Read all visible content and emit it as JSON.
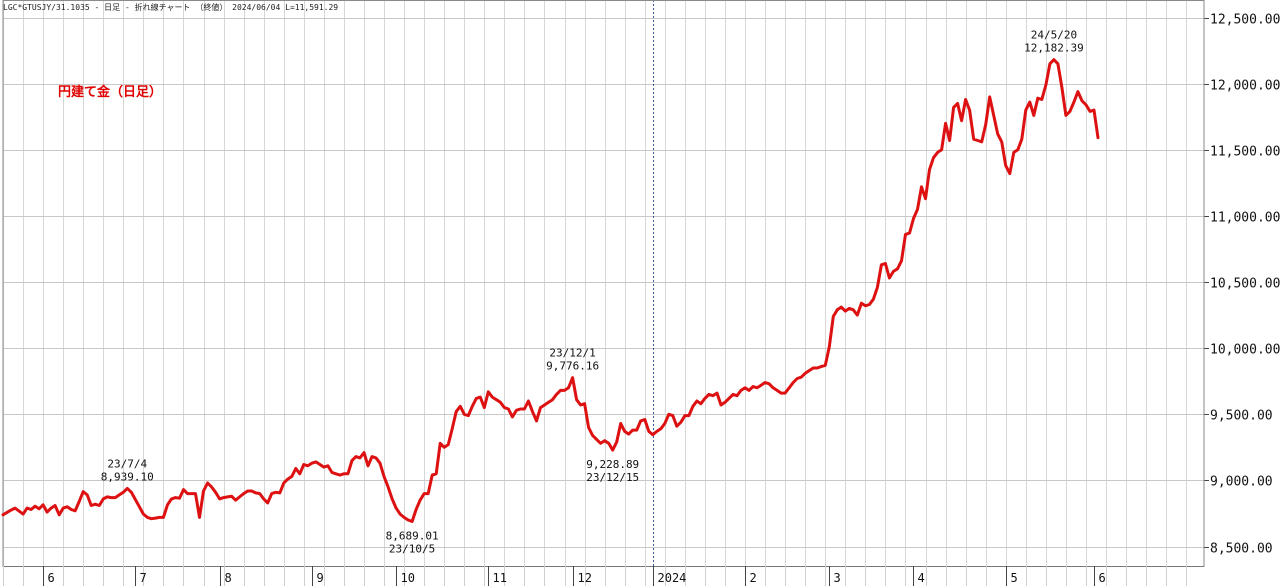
{
  "header": {
    "text": "LGC*GTUSJY/31.1035 - 日足 - 折れ線チャート （終値）  2024/06/04 L=11,591.29"
  },
  "chart_data": {
    "type": "line",
    "title": "円建て金（日足）",
    "xlabel": "",
    "ylabel": "",
    "ylim": [
      8450,
      12560
    ],
    "yticks": [
      8500,
      9000,
      9500,
      10000,
      10500,
      11000,
      11500,
      12000,
      12500
    ],
    "ytick_labels": [
      "8,500.00",
      "9,000.00",
      "9,500.00",
      "10,000.00",
      "10,500.00",
      "11,000.00",
      "11,500.00",
      "12,000.00",
      "12,500.00"
    ],
    "x_range": [
      0,
      273
    ],
    "x_month_ticks": [
      {
        "label": "6",
        "x": 10
      },
      {
        "label": "7",
        "x": 33
      },
      {
        "label": "8",
        "x": 54
      },
      {
        "label": "9",
        "x": 77
      },
      {
        "label": "10",
        "x": 98
      },
      {
        "label": "11",
        "x": 121
      },
      {
        "label": "12",
        "x": 142
      },
      {
        "label": "2024",
        "x": 162
      },
      {
        "label": "2",
        "x": 185
      },
      {
        "label": "3",
        "x": 206
      },
      {
        "label": "4",
        "x": 227
      },
      {
        "label": "5",
        "x": 250
      },
      {
        "label": "6",
        "x": 272
      }
    ],
    "year_divider_x": 162,
    "grid": true,
    "legend": "none",
    "series": [
      {
        "color": "#dd1111",
        "points": [
          [
            0,
            8740
          ],
          [
            2,
            8775
          ],
          [
            3,
            8790
          ],
          [
            5,
            8745
          ],
          [
            6,
            8790
          ],
          [
            7,
            8780
          ],
          [
            8,
            8805
          ],
          [
            9,
            8785
          ],
          [
            10,
            8815
          ],
          [
            11,
            8760
          ],
          [
            12,
            8790
          ],
          [
            13,
            8810
          ],
          [
            14,
            8740
          ],
          [
            15,
            8790
          ],
          [
            16,
            8800
          ],
          [
            17,
            8780
          ],
          [
            18,
            8770
          ],
          [
            19,
            8840
          ],
          [
            20,
            8915
          ],
          [
            21,
            8890
          ],
          [
            22,
            8810
          ],
          [
            23,
            8820
          ],
          [
            24,
            8810
          ],
          [
            25,
            8860
          ],
          [
            26,
            8875
          ],
          [
            27,
            8870
          ],
          [
            28,
            8870
          ],
          [
            29,
            8890
          ],
          [
            30,
            8910
          ],
          [
            31,
            8939
          ],
          [
            32,
            8910
          ],
          [
            33,
            8855
          ],
          [
            34,
            8800
          ],
          [
            35,
            8745
          ],
          [
            36,
            8720
          ],
          [
            37,
            8710
          ],
          [
            38,
            8715
          ],
          [
            39,
            8720
          ],
          [
            40,
            8720
          ],
          [
            41,
            8815
          ],
          [
            42,
            8860
          ],
          [
            43,
            8870
          ],
          [
            44,
            8865
          ],
          [
            45,
            8930
          ],
          [
            46,
            8900
          ],
          [
            47,
            8900
          ],
          [
            48,
            8900
          ],
          [
            49,
            8720
          ],
          [
            50,
            8920
          ],
          [
            51,
            8980
          ],
          [
            52,
            8950
          ],
          [
            53,
            8910
          ],
          [
            54,
            8860
          ],
          [
            55,
            8870
          ],
          [
            56,
            8875
          ],
          [
            57,
            8880
          ],
          [
            58,
            8850
          ],
          [
            59,
            8875
          ],
          [
            60,
            8900
          ],
          [
            61,
            8920
          ],
          [
            62,
            8920
          ],
          [
            63,
            8905
          ],
          [
            64,
            8900
          ],
          [
            65,
            8860
          ],
          [
            66,
            8830
          ],
          [
            67,
            8900
          ],
          [
            68,
            8910
          ],
          [
            69,
            8905
          ],
          [
            70,
            8980
          ],
          [
            71,
            9010
          ],
          [
            72,
            9030
          ],
          [
            73,
            9090
          ],
          [
            74,
            9050
          ],
          [
            75,
            9120
          ],
          [
            76,
            9110
          ],
          [
            77,
            9130
          ],
          [
            78,
            9140
          ],
          [
            79,
            9120
          ],
          [
            80,
            9100
          ],
          [
            81,
            9110
          ],
          [
            82,
            9060
          ],
          [
            83,
            9050
          ],
          [
            84,
            9040
          ],
          [
            85,
            9050
          ],
          [
            86,
            9050
          ],
          [
            87,
            9150
          ],
          [
            88,
            9180
          ],
          [
            89,
            9170
          ],
          [
            90,
            9210
          ],
          [
            91,
            9110
          ],
          [
            92,
            9180
          ],
          [
            93,
            9170
          ],
          [
            94,
            9130
          ],
          [
            95,
            9030
          ],
          [
            96,
            8950
          ],
          [
            97,
            8860
          ],
          [
            98,
            8790
          ],
          [
            99,
            8745
          ],
          [
            100,
            8720
          ],
          [
            101,
            8700
          ],
          [
            102,
            8689
          ],
          [
            103,
            8780
          ],
          [
            104,
            8850
          ],
          [
            105,
            8900
          ],
          [
            106,
            8900
          ],
          [
            107,
            9040
          ],
          [
            108,
            9050
          ],
          [
            109,
            9280
          ],
          [
            110,
            9250
          ],
          [
            111,
            9270
          ],
          [
            112,
            9390
          ],
          [
            113,
            9520
          ],
          [
            114,
            9560
          ],
          [
            115,
            9500
          ],
          [
            116,
            9490
          ],
          [
            117,
            9560
          ],
          [
            118,
            9620
          ],
          [
            119,
            9630
          ],
          [
            120,
            9550
          ],
          [
            121,
            9670
          ],
          [
            122,
            9630
          ],
          [
            123,
            9610
          ],
          [
            124,
            9590
          ],
          [
            125,
            9550
          ],
          [
            126,
            9540
          ],
          [
            127,
            9480
          ],
          [
            128,
            9530
          ],
          [
            129,
            9540
          ],
          [
            130,
            9540
          ],
          [
            131,
            9600
          ],
          [
            132,
            9520
          ],
          [
            133,
            9450
          ],
          [
            134,
            9550
          ],
          [
            135,
            9570
          ],
          [
            136,
            9590
          ],
          [
            137,
            9610
          ],
          [
            138,
            9650
          ],
          [
            139,
            9680
          ],
          [
            140,
            9680
          ],
          [
            141,
            9700
          ],
          [
            142,
            9776
          ],
          [
            143,
            9610
          ],
          [
            144,
            9570
          ],
          [
            145,
            9580
          ],
          [
            146,
            9400
          ],
          [
            147,
            9340
          ],
          [
            148,
            9310
          ],
          [
            149,
            9280
          ],
          [
            150,
            9300
          ],
          [
            151,
            9280
          ],
          [
            152,
            9229
          ],
          [
            153,
            9290
          ],
          [
            154,
            9430
          ],
          [
            155,
            9370
          ],
          [
            156,
            9350
          ],
          [
            157,
            9380
          ],
          [
            158,
            9380
          ],
          [
            159,
            9450
          ],
          [
            160,
            9460
          ],
          [
            161,
            9370
          ],
          [
            162,
            9345
          ],
          [
            163,
            9370
          ],
          [
            164,
            9390
          ],
          [
            165,
            9430
          ],
          [
            166,
            9500
          ],
          [
            167,
            9490
          ],
          [
            168,
            9410
          ],
          [
            169,
            9440
          ],
          [
            170,
            9490
          ],
          [
            171,
            9490
          ],
          [
            172,
            9560
          ],
          [
            173,
            9600
          ],
          [
            174,
            9580
          ],
          [
            175,
            9620
          ],
          [
            176,
            9650
          ],
          [
            177,
            9640
          ],
          [
            178,
            9660
          ],
          [
            179,
            9570
          ],
          [
            180,
            9590
          ],
          [
            181,
            9620
          ],
          [
            182,
            9650
          ],
          [
            183,
            9640
          ],
          [
            184,
            9680
          ],
          [
            185,
            9700
          ],
          [
            186,
            9680
          ],
          [
            187,
            9710
          ],
          [
            188,
            9700
          ],
          [
            189,
            9720
          ],
          [
            190,
            9740
          ],
          [
            191,
            9730
          ],
          [
            192,
            9700
          ],
          [
            193,
            9680
          ],
          [
            194,
            9660
          ],
          [
            195,
            9660
          ],
          [
            196,
            9700
          ],
          [
            197,
            9740
          ],
          [
            198,
            9770
          ],
          [
            199,
            9780
          ],
          [
            200,
            9810
          ],
          [
            201,
            9830
          ],
          [
            202,
            9850
          ],
          [
            203,
            9850
          ],
          [
            204,
            9860
          ],
          [
            205,
            9870
          ],
          [
            206,
            10010
          ],
          [
            207,
            10240
          ],
          [
            208,
            10290
          ],
          [
            209,
            10310
          ],
          [
            210,
            10280
          ],
          [
            211,
            10300
          ],
          [
            212,
            10290
          ],
          [
            213,
            10250
          ],
          [
            214,
            10340
          ],
          [
            215,
            10320
          ],
          [
            216,
            10330
          ],
          [
            217,
            10370
          ],
          [
            218,
            10460
          ],
          [
            219,
            10630
          ],
          [
            220,
            10640
          ],
          [
            221,
            10530
          ],
          [
            222,
            10580
          ],
          [
            223,
            10600
          ],
          [
            224,
            10660
          ],
          [
            225,
            10860
          ],
          [
            226,
            10870
          ],
          [
            227,
            10980
          ],
          [
            228,
            11050
          ],
          [
            229,
            11220
          ],
          [
            230,
            11130
          ],
          [
            231,
            11350
          ],
          [
            232,
            11440
          ],
          [
            233,
            11480
          ],
          [
            234,
            11500
          ],
          [
            235,
            11700
          ],
          [
            236,
            11570
          ],
          [
            237,
            11820
          ],
          [
            238,
            11850
          ],
          [
            239,
            11720
          ],
          [
            240,
            11880
          ],
          [
            241,
            11800
          ],
          [
            242,
            11580
          ],
          [
            243,
            11570
          ],
          [
            244,
            11560
          ],
          [
            245,
            11690
          ],
          [
            246,
            11900
          ],
          [
            247,
            11760
          ],
          [
            248,
            11620
          ],
          [
            249,
            11560
          ],
          [
            250,
            11380
          ],
          [
            251,
            11320
          ],
          [
            252,
            11480
          ],
          [
            253,
            11500
          ],
          [
            254,
            11580
          ],
          [
            255,
            11800
          ],
          [
            256,
            11860
          ],
          [
            257,
            11760
          ],
          [
            258,
            11890
          ],
          [
            259,
            11880
          ],
          [
            260,
            11990
          ],
          [
            261,
            12150
          ],
          [
            262,
            12182
          ],
          [
            263,
            12150
          ],
          [
            264,
            11970
          ],
          [
            265,
            11760
          ],
          [
            266,
            11790
          ],
          [
            267,
            11860
          ],
          [
            268,
            11940
          ],
          [
            269,
            11870
          ],
          [
            270,
            11840
          ],
          [
            271,
            11790
          ],
          [
            272,
            11800
          ],
          [
            273,
            11591
          ]
        ]
      }
    ],
    "annotations": [
      {
        "lines": [
          "23/7/4",
          "8,939.10"
        ],
        "x": 31,
        "value": 8939.1,
        "position": "above"
      },
      {
        "lines": [
          "8,689.01",
          "23/10/5"
        ],
        "x": 102,
        "value": 8689.01,
        "position": "below"
      },
      {
        "lines": [
          "23/12/1",
          "9,776.16"
        ],
        "x": 142,
        "value": 9776.16,
        "position": "above"
      },
      {
        "lines": [
          "9,228.89",
          "23/12/15"
        ],
        "x": 152,
        "value": 9228.89,
        "position": "below"
      },
      {
        "lines": [
          "24/5/20",
          "12,182.39"
        ],
        "x": 262,
        "value": 12182.39,
        "position": "above"
      }
    ]
  }
}
